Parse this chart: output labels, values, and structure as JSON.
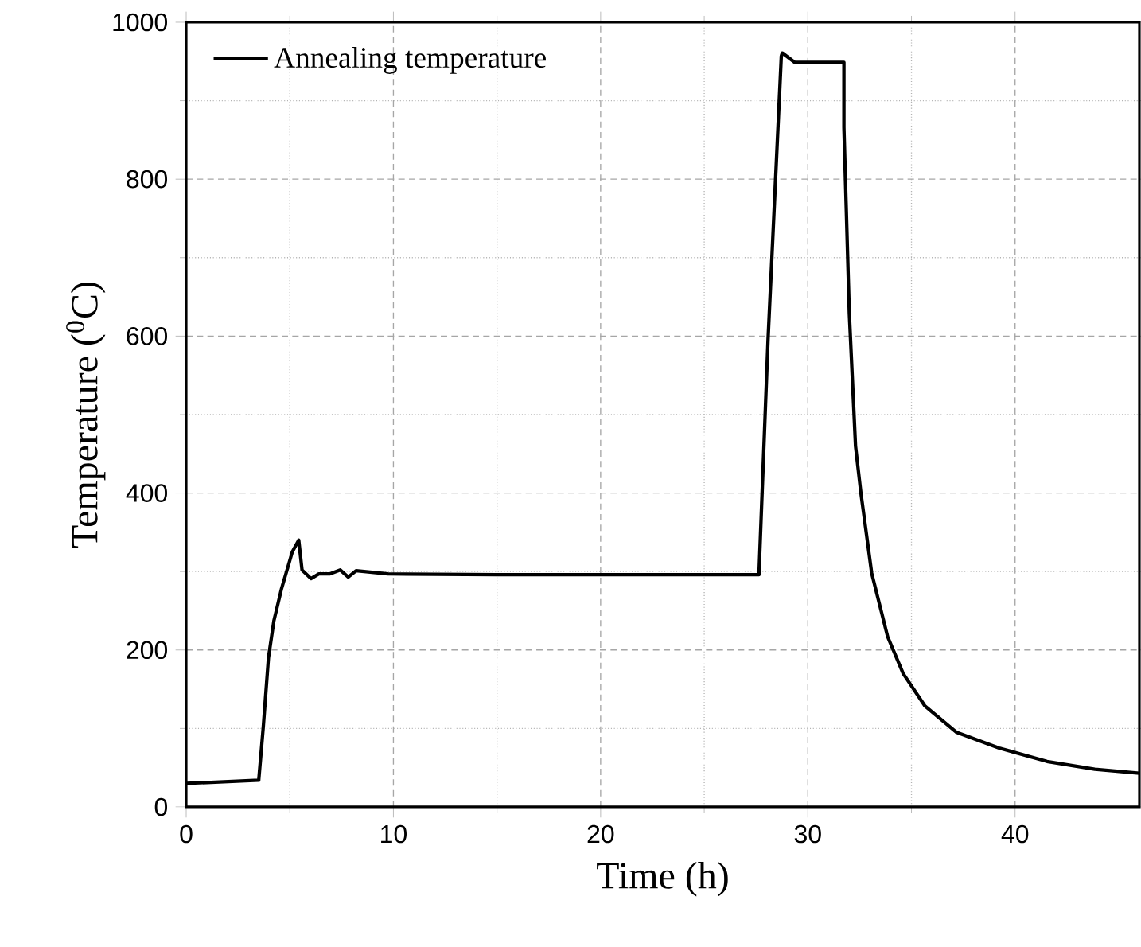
{
  "chart_data": {
    "type": "line",
    "xlabel": "Time (h)",
    "ylabel": "Temperature ($^{0}$C)",
    "xlim": [
      0,
      46
    ],
    "ylim": [
      0,
      1000
    ],
    "xticks": [
      0,
      10,
      20,
      30,
      40
    ],
    "yticks": [
      0,
      200,
      400,
      600,
      800,
      1000
    ],
    "grid": true,
    "legend": "top left",
    "marker": "none",
    "line_style": "solid",
    "series": [
      {
        "name": "Annealing temperature",
        "color": "#000000",
        "x": [
          0,
          3.5,
          3.72,
          3.97,
          4.23,
          4.6,
          5.12,
          5.43,
          5.59,
          6.02,
          6.4,
          6.92,
          7.43,
          7.82,
          8.2,
          8.59,
          9.74,
          15,
          20,
          25,
          27.64,
          28.08,
          28.72,
          28.77,
          29.36,
          31.74,
          31.74,
          32.0,
          32.3,
          32.56,
          33.08,
          33.85,
          34.6,
          35.64,
          37.18,
          39.23,
          41.54,
          43.85,
          46
        ],
        "values": [
          30,
          34,
          102,
          190,
          237,
          278,
          325,
          340,
          302,
          291,
          297,
          297,
          302,
          293,
          301,
          300,
          297,
          296,
          296,
          296,
          296,
          596,
          957,
          961,
          949,
          949,
          866,
          629,
          460,
          400,
          298,
          217,
          170,
          129,
          95,
          75,
          58,
          48,
          43
        ]
      }
    ]
  }
}
